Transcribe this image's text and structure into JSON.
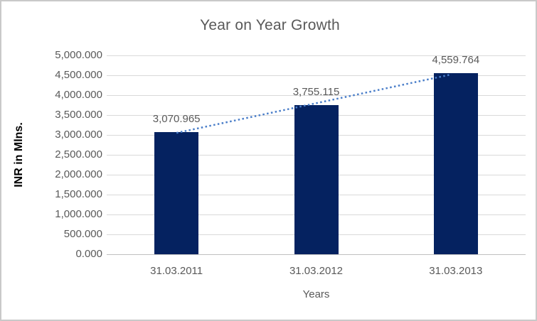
{
  "chart_data": {
    "type": "bar",
    "title": "Year on Year Growth",
    "categories": [
      "31.03.2011",
      "31.03.2012",
      "31.03.2013"
    ],
    "values": [
      3070.965,
      3755.115,
      4559.764
    ],
    "value_labels": [
      "3,070.965",
      "3,755.115",
      "4,559.764"
    ],
    "xlabel": "Years",
    "ylabel": "INR in Mlns.",
    "ylim": [
      0,
      5000
    ],
    "ytick_step": 500,
    "ytick_labels": [
      "0.000",
      "500.000",
      "1,000.000",
      "1,500.000",
      "2,000.000",
      "2,500.000",
      "3,000.000",
      "3,500.000",
      "4,000.000",
      "4,500.000",
      "5,000.000"
    ],
    "grid": true,
    "legend": "none",
    "trendline": {
      "type": "linear",
      "style": "dotted"
    },
    "colors": {
      "bar": "#052260",
      "trendline": "#4a7ec9",
      "gridline": "#d9d9d9",
      "axis_line": "#bfbfbf",
      "axis_text": "#595959",
      "title_text": "#595959",
      "data_label_text": "#595959",
      "ylabel_text": "#000000",
      "frame_border": "#c9c9c9",
      "background": "#ffffff"
    }
  }
}
